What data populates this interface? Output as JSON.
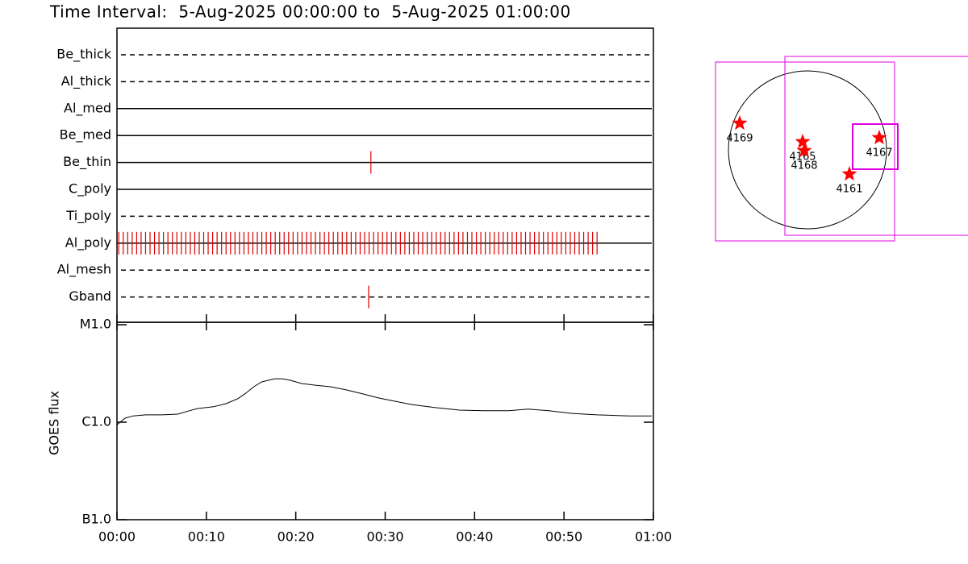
{
  "title": "Time Interval:  5-Aug-2025 00:00:00 to  5-Aug-2025 01:00:00",
  "chart_data": [
    {
      "type": "timeline",
      "categories": [
        "Be_thick",
        "Al_thick",
        "Al_med",
        "Be_med",
        "Be_thin",
        "C_poly",
        "Ti_poly",
        "Al_poly",
        "Al_mesh",
        "Gband"
      ],
      "line_styles": [
        "dashed",
        "dashed",
        "solid",
        "solid",
        "solid",
        "solid",
        "dashed",
        "solid",
        "dashed",
        "dashed"
      ],
      "observations": [
        [],
        [],
        [],
        [],
        [
          28.4
        ],
        [],
        [],
        [
          0.2,
          0.7,
          1.2,
          1.7,
          2.2,
          2.7,
          3.2,
          3.7,
          4.2,
          4.7,
          5.2,
          5.7,
          6.2,
          6.7,
          7.2,
          7.7,
          8.2,
          8.7,
          9.2,
          9.7,
          10.2,
          10.7,
          11.2,
          11.7,
          12.2,
          12.7,
          13.2,
          13.7,
          14.2,
          14.7,
          15.2,
          15.7,
          16.2,
          16.7,
          17.2,
          17.7,
          18.2,
          18.7,
          19.2,
          19.7,
          20.2,
          20.7,
          21.2,
          21.7,
          22.2,
          22.7,
          23.2,
          23.7,
          24.2,
          24.7,
          25.2,
          25.7,
          26.2,
          26.7,
          27.2,
          27.7,
          28.2,
          28.7,
          29.2,
          29.7,
          30.2,
          30.7,
          31.2,
          31.7,
          32.2,
          32.7,
          33.2,
          33.7,
          34.2,
          34.7,
          35.2,
          35.7,
          36.2,
          36.7,
          37.2,
          37.7,
          38.2,
          38.7,
          39.2,
          39.7,
          40.2,
          40.7,
          41.2,
          41.7,
          42.2,
          42.7,
          43.2,
          43.7,
          44.2,
          44.7,
          45.2,
          45.7,
          46.2,
          46.7,
          47.2,
          47.7,
          48.2,
          48.7,
          49.2,
          49.7,
          50.2,
          50.7,
          51.2,
          51.7,
          52.2,
          52.7,
          53.2,
          53.7
        ],
        [],
        [
          28.15
        ]
      ],
      "color": "#dd0000",
      "xlim": [
        0,
        60
      ]
    },
    {
      "type": "line",
      "ylabel": "GOES flux",
      "ylog": true,
      "x": [
        0,
        0.9,
        1.8,
        3.2,
        5.0,
        6.8,
        8.1,
        9.0,
        10.8,
        12.2,
        13.5,
        14.4,
        15.3,
        16.2,
        17.6,
        18.5,
        19.4,
        20.7,
        22.1,
        23.9,
        25.7,
        27.5,
        29.3,
        31.1,
        32.9,
        35.6,
        38.3,
        41.0,
        43.8,
        46.0,
        48.3,
        50.9,
        53.7,
        57.3,
        59.8
      ],
      "values": [
        9.4e-07,
        1.1e-06,
        1.16e-06,
        1.19e-06,
        1.19e-06,
        1.21e-06,
        1.31e-06,
        1.38e-06,
        1.44e-06,
        1.55e-06,
        1.74e-06,
        1.98e-06,
        2.31e-06,
        2.59e-06,
        2.79e-06,
        2.79e-06,
        2.69e-06,
        2.49e-06,
        2.4e-06,
        2.31e-06,
        2.14e-06,
        1.95e-06,
        1.77e-06,
        1.64e-06,
        1.52e-06,
        1.41e-06,
        1.33e-06,
        1.31e-06,
        1.31e-06,
        1.36e-06,
        1.31e-06,
        1.23e-06,
        1.19e-06,
        1.16e-06,
        1.16e-06
      ],
      "color": "#000000",
      "xlim": [
        0,
        60
      ],
      "xticks": [
        {
          "value": 0,
          "label": "00:00"
        },
        {
          "value": 10,
          "label": "00:10"
        },
        {
          "value": 20,
          "label": "00:20"
        },
        {
          "value": 30,
          "label": "00:30"
        },
        {
          "value": 40,
          "label": "00:40"
        },
        {
          "value": 50,
          "label": "00:50"
        },
        {
          "value": 60,
          "label": "01:00"
        }
      ],
      "ylim": [
        1e-07,
        1e-05
      ],
      "yticks": [
        {
          "value": 1e-07,
          "label": "B1.0"
        },
        {
          "value": 1e-06,
          "label": "C1.0"
        },
        {
          "value": 1e-05,
          "label": "M1.0"
        }
      ]
    }
  ],
  "map": {
    "regions": [
      "4169",
      "4165",
      "4168",
      "4167",
      "4161"
    ]
  }
}
